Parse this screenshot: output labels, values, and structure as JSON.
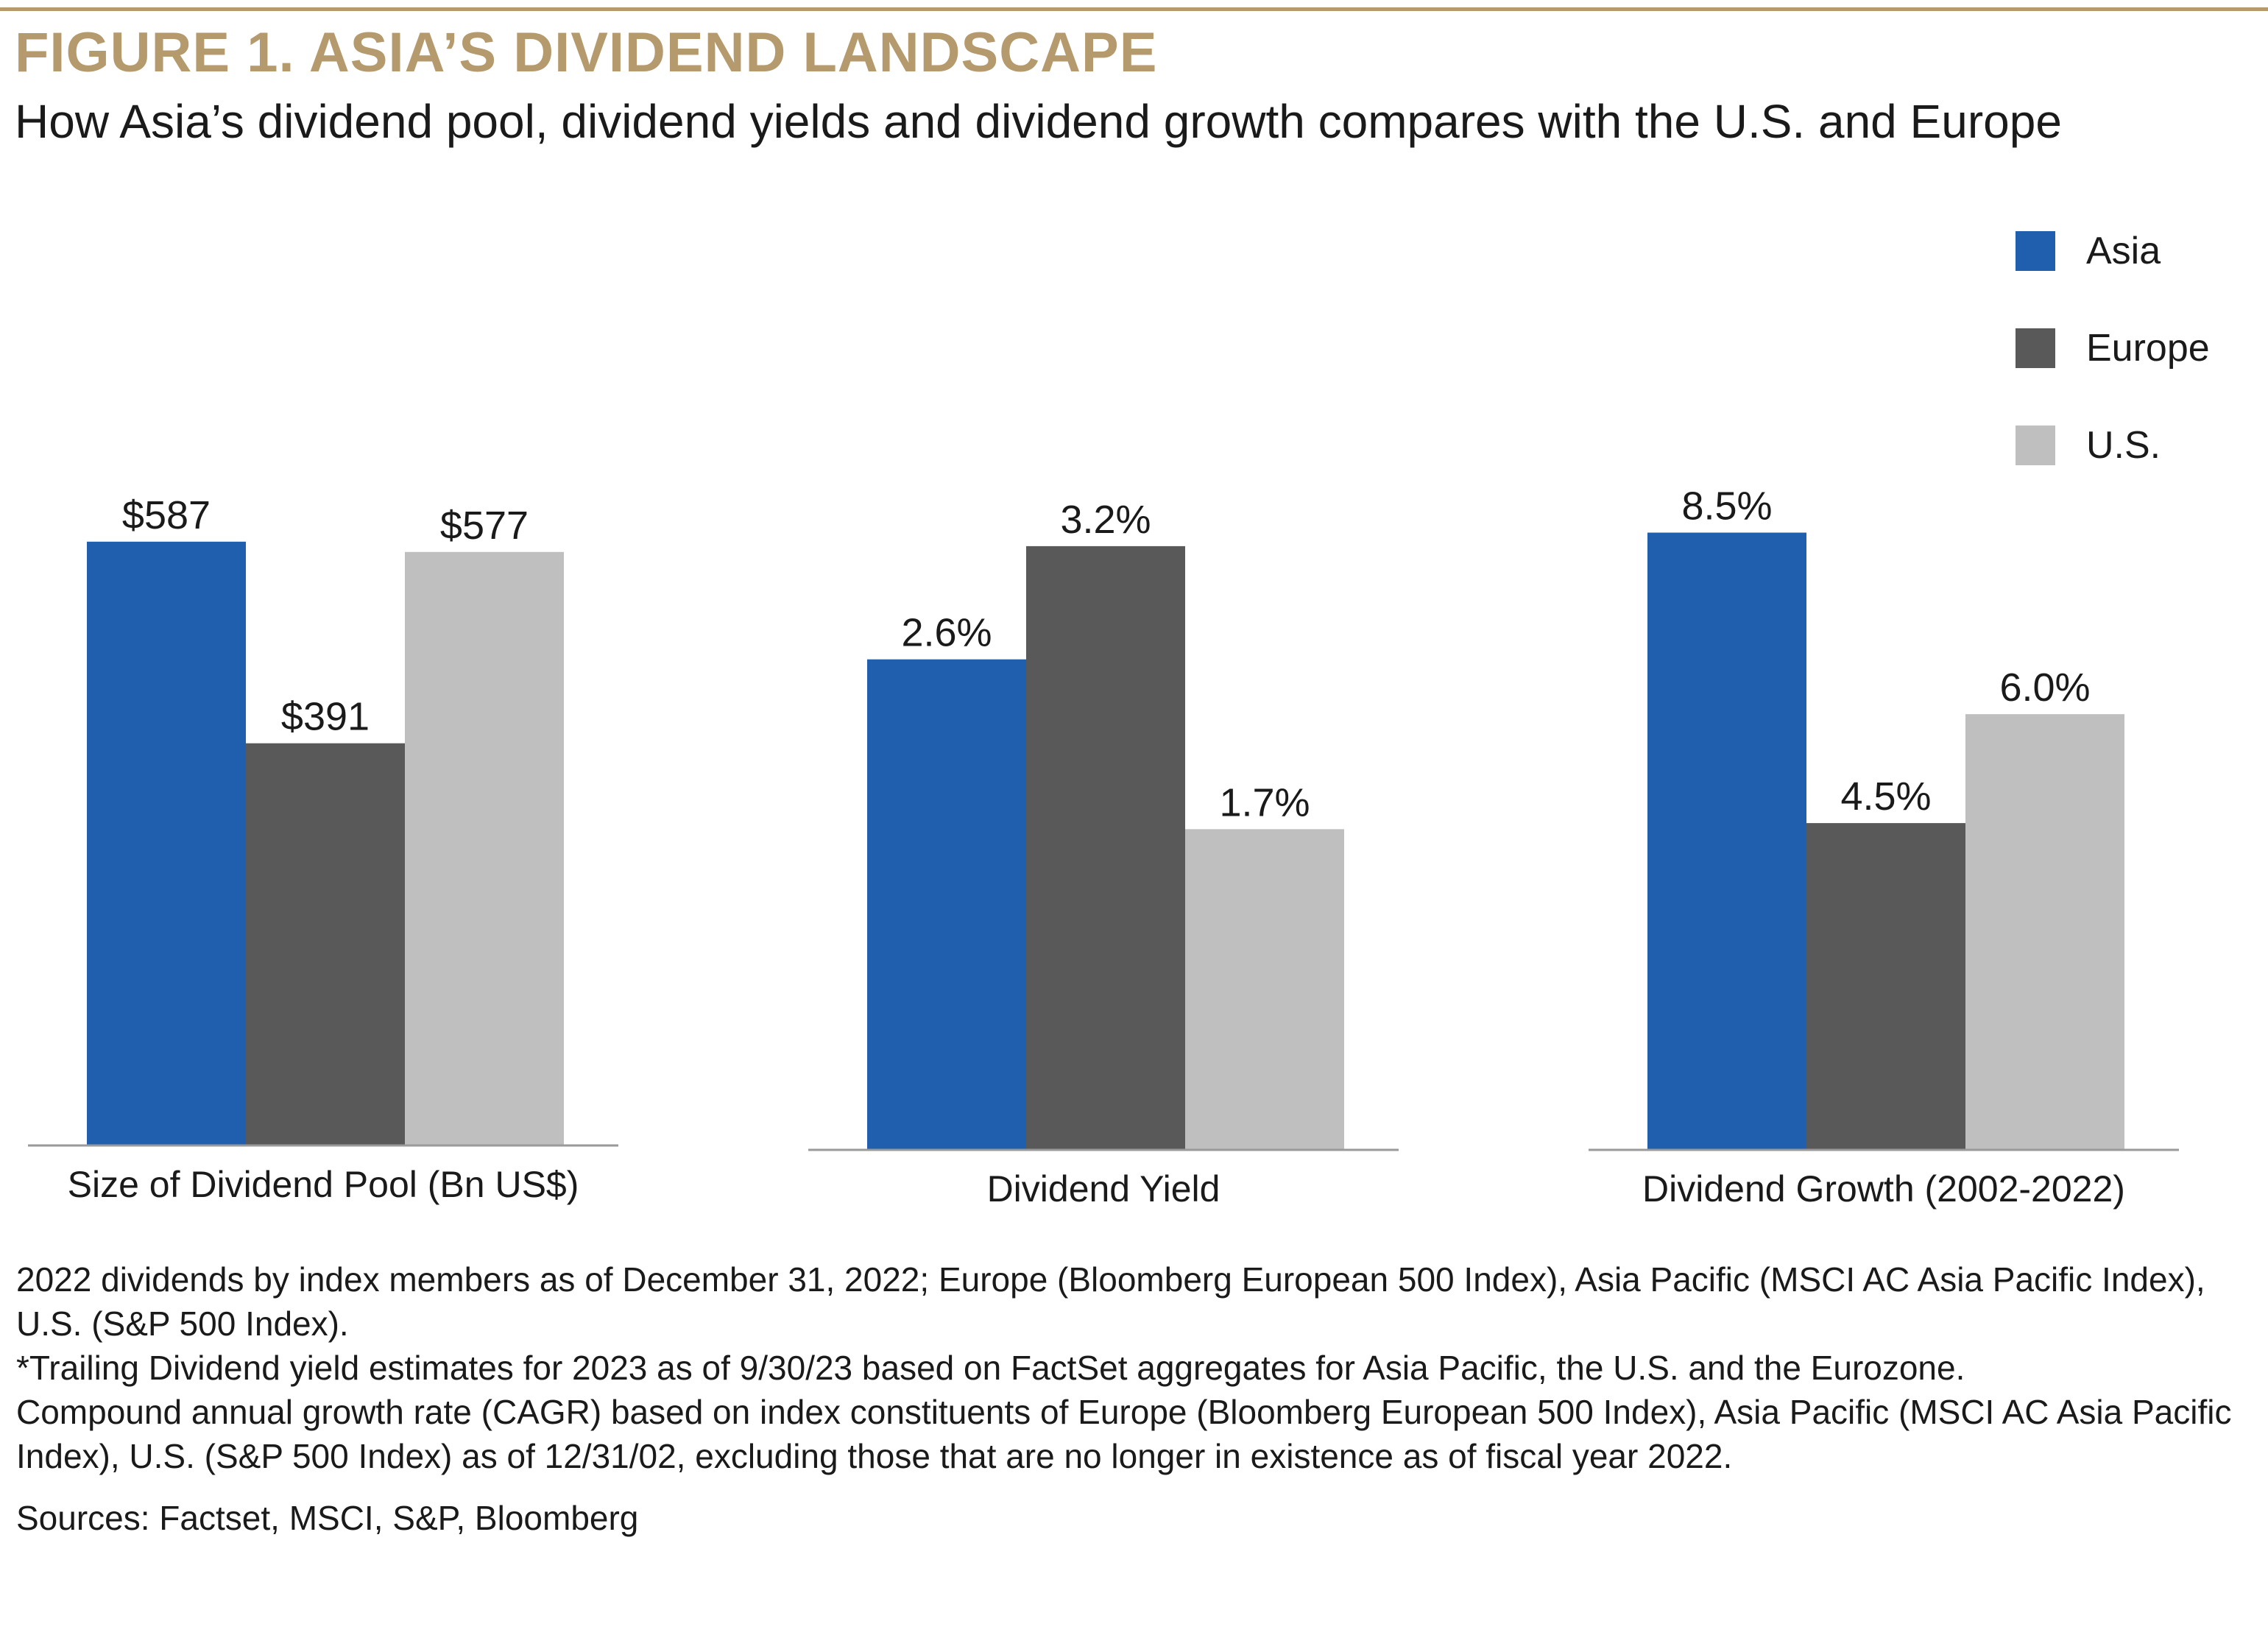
{
  "figure": {
    "title": "FIGURE 1. ASIA’S DIVIDEND LANDSCAPE",
    "subtitle": "How Asia’s dividend pool, dividend yields and dividend growth compares with the U.S. and Europe"
  },
  "chart_data": {
    "type": "bar",
    "grid": false,
    "legend_position": "top-right",
    "series": [
      {
        "name": "Asia",
        "color": "#1f5fad"
      },
      {
        "name": "Europe",
        "color": "#595959"
      },
      {
        "name": "U.S.",
        "color": "#bfbfbf"
      }
    ],
    "panels": [
      {
        "category": "Size of Dividend Pool (Bn US$)",
        "values": [
          587,
          391,
          577
        ],
        "labels": [
          "$587",
          "$391",
          "$577"
        ],
        "ymax": 730
      },
      {
        "category": "Dividend Yield",
        "values": [
          2.6,
          3.2,
          1.7
        ],
        "labels": [
          "2.6%",
          "3.2%",
          "1.7%"
        ],
        "ymax": 3.98
      },
      {
        "category": "Dividend Growth (2002-2022)",
        "values": [
          8.5,
          4.5,
          6.0
        ],
        "labels": [
          "8.5%",
          "4.5%",
          "6.0%"
        ],
        "ymax": 10.34
      }
    ]
  },
  "notes": {
    "line1": "2022 dividends by index members as of December 31, 2022; Europe (Bloomberg European 500 Index), Asia Pacific (MSCI AC Asia Pacific Index), U.S. (S&P 500 Index).",
    "line2": "*Trailing Dividend yield estimates for 2023 as of 9/30/23 based on FactSet aggregates for Asia Pacific, the U.S. and the Eurozone.",
    "line3": "Compound annual growth rate (CAGR) based on index constituents of Europe (Bloomberg European 500 Index), Asia Pacific (MSCI AC Asia Pacific Index), U.S. (S&P 500 Index) as of 12/31/02, excluding those that are no longer in existence as of fiscal year 2022.",
    "sources": "Sources: Factset, MSCI, S&P, Bloomberg"
  }
}
